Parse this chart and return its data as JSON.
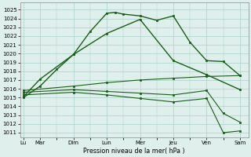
{
  "ylabel": "Pression niveau de la mer( hPa )",
  "ylim": [
    1010.5,
    1025.8
  ],
  "yticks": [
    1011,
    1012,
    1013,
    1014,
    1015,
    1016,
    1017,
    1018,
    1019,
    1020,
    1021,
    1022,
    1023,
    1024,
    1025
  ],
  "line_color": "#1a5c1a",
  "bg_color": "#dff0ec",
  "grid_color": "#aacfc8",
  "xlim": [
    -0.2,
    13.5
  ],
  "x_tick_positions": [
    0,
    1,
    3,
    5,
    7,
    9,
    11,
    13
  ],
  "x_tick_labels": [
    "Lu",
    "Mar",
    "Dim",
    "Lun",
    "Mer",
    "Jeu",
    "Ven",
    "Sam"
  ],
  "series1_x": [
    0,
    1,
    2,
    3,
    4,
    5,
    5.5,
    6,
    7,
    8,
    9,
    10,
    11,
    12,
    13
  ],
  "series1_y": [
    1015.0,
    1016.3,
    1018.2,
    1019.9,
    1022.5,
    1024.6,
    1024.7,
    1024.5,
    1024.3,
    1023.8,
    1024.3,
    1021.3,
    1019.2,
    1019.1,
    1017.5
  ],
  "series2_x": [
    0,
    1,
    3,
    5,
    7,
    9,
    11,
    13
  ],
  "series2_y": [
    1015.1,
    1017.1,
    1019.9,
    1022.3,
    1023.9,
    1019.2,
    1017.6,
    1015.9
  ],
  "series3_x": [
    0,
    3,
    5,
    7,
    9,
    11,
    13
  ],
  "series3_y": [
    1015.8,
    1016.3,
    1016.7,
    1017.0,
    1017.2,
    1017.4,
    1017.5
  ],
  "series4_x": [
    0,
    3,
    5,
    7,
    9,
    11,
    12,
    13
  ],
  "series4_y": [
    1015.6,
    1015.9,
    1015.7,
    1015.5,
    1015.3,
    1015.8,
    1013.2,
    1012.2
  ],
  "series5_x": [
    0,
    3,
    5,
    7,
    9,
    11,
    12,
    13
  ],
  "series5_y": [
    1015.3,
    1015.6,
    1015.3,
    1014.9,
    1014.5,
    1014.9,
    1011.0,
    1011.2
  ]
}
